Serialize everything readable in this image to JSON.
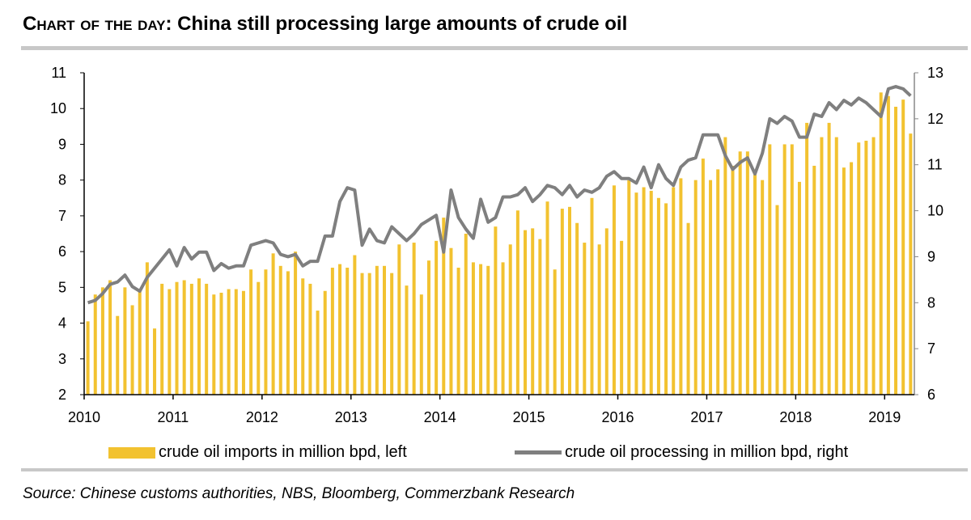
{
  "title_prefix": "Chart of the day:",
  "title_main": " China still processing large amounts of crude oil",
  "source": "Source: Chinese customs authorities, NBS, Bloomberg, Commerzbank Research",
  "chart_data": {
    "type": "bar+line",
    "x_start": "2010-01",
    "x_frequency": "monthly",
    "x_tick_labels": [
      "2010",
      "2011",
      "2012",
      "2013",
      "2014",
      "2015",
      "2016",
      "2017",
      "2018",
      "2019"
    ],
    "left_axis": {
      "range": [
        2,
        11
      ],
      "ticks": [
        2,
        3,
        4,
        5,
        6,
        7,
        8,
        9,
        10,
        11
      ]
    },
    "right_axis": {
      "range": [
        6,
        13
      ],
      "ticks": [
        6,
        7,
        8,
        9,
        10,
        11,
        12,
        13
      ]
    },
    "grid": false,
    "legend_placement": "bottom",
    "colors": {
      "bars": "#F2C230",
      "line": "#7f7f7f"
    },
    "series": [
      {
        "name": "crude oil imports in million bpd, left",
        "type": "bar",
        "axis": "left",
        "values": [
          4.05,
          4.8,
          5.0,
          5.2,
          4.2,
          5.0,
          4.5,
          4.9,
          5.7,
          3.85,
          5.1,
          4.95,
          5.15,
          5.2,
          5.1,
          5.25,
          5.1,
          4.8,
          4.85,
          4.95,
          4.95,
          4.9,
          5.5,
          5.15,
          5.5,
          5.95,
          5.6,
          5.45,
          6.0,
          5.25,
          5.1,
          4.35,
          4.9,
          5.55,
          5.65,
          5.55,
          5.9,
          5.4,
          5.4,
          5.6,
          5.6,
          5.4,
          6.2,
          5.05,
          6.25,
          4.8,
          5.75,
          6.3,
          6.95,
          6.1,
          5.55,
          6.5,
          5.7,
          5.65,
          5.6,
          6.7,
          5.7,
          6.2,
          7.15,
          6.6,
          6.65,
          6.35,
          7.4,
          5.5,
          7.2,
          7.25,
          6.8,
          6.25,
          7.5,
          6.2,
          6.65,
          7.85,
          6.3,
          8.0,
          7.65,
          7.8,
          7.7,
          7.5,
          7.35,
          7.8,
          8.05,
          6.8,
          8.0,
          8.6,
          8.0,
          8.3,
          9.2,
          8.4,
          8.8,
          8.8,
          8.15,
          8.0,
          9.0,
          7.3,
          9.0,
          9.0,
          7.95,
          9.6,
          8.4,
          9.2,
          9.6,
          9.2,
          8.35,
          8.5,
          9.05,
          9.1,
          9.2,
          10.45,
          10.35,
          10.05,
          10.25,
          9.3
        ]
      },
      {
        "name": "crude oil processing in million bpd, right",
        "type": "line",
        "axis": "right",
        "values": [
          8.0,
          8.05,
          8.2,
          8.4,
          8.45,
          8.6,
          8.35,
          8.25,
          8.55,
          8.75,
          8.95,
          9.15,
          8.8,
          9.2,
          8.95,
          9.1,
          9.1,
          8.7,
          8.85,
          8.75,
          8.8,
          8.8,
          9.25,
          9.3,
          9.35,
          9.3,
          9.05,
          9.0,
          9.05,
          8.8,
          8.9,
          8.9,
          9.45,
          9.45,
          10.2,
          10.5,
          10.45,
          9.25,
          9.6,
          9.35,
          9.3,
          9.65,
          9.5,
          9.35,
          9.5,
          9.7,
          9.8,
          9.9,
          9.1,
          10.45,
          9.85,
          9.6,
          9.4,
          10.25,
          9.75,
          9.85,
          10.3,
          10.3,
          10.35,
          10.5,
          10.2,
          10.35,
          10.55,
          10.5,
          10.35,
          10.55,
          10.3,
          10.45,
          10.4,
          10.5,
          10.75,
          10.85,
          10.7,
          10.7,
          10.6,
          10.95,
          10.5,
          11.0,
          10.7,
          10.55,
          10.95,
          11.1,
          11.15,
          11.65,
          11.65,
          11.65,
          11.2,
          10.9,
          11.05,
          11.15,
          10.8,
          11.25,
          12.0,
          11.9,
          12.05,
          11.95,
          11.6,
          11.6,
          12.1,
          12.05,
          12.35,
          12.2,
          12.4,
          12.3,
          12.45,
          12.35,
          12.2,
          12.05,
          12.65,
          12.7,
          12.65,
          12.5
        ]
      }
    ]
  }
}
